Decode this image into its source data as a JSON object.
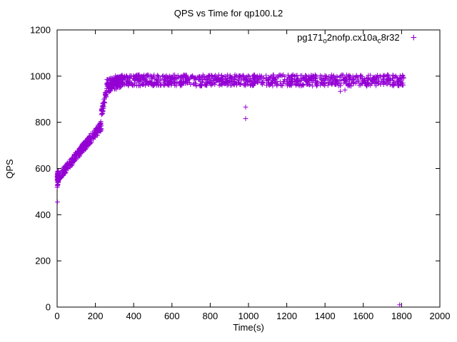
{
  "chart_data": {
    "type": "scatter",
    "title": "QPS vs Time for qp100.L2",
    "xlabel": "Time(s)",
    "ylabel": "QPS",
    "xlim": [
      0,
      2000
    ],
    "ylim": [
      0,
      1200
    ],
    "xticks": [
      0,
      200,
      400,
      600,
      800,
      1000,
      1200,
      1400,
      1600,
      1800,
      2000
    ],
    "yticks": [
      0,
      200,
      400,
      600,
      800,
      1000,
      1200
    ],
    "grid": false,
    "legend_position": "top-right-inside",
    "marker": "plus",
    "marker_color": "#9400D3",
    "series_name": "pg171_o2nofp.cx10a_c8r32",
    "legend_rich": [
      {
        "text": "pg171",
        "sub": false
      },
      {
        "text": "o",
        "sub": true
      },
      {
        "text": "2nofp.cx10a",
        "sub": false
      },
      {
        "text": "c",
        "sub": true
      },
      {
        "text": "8r32",
        "sub": false
      }
    ],
    "seed": 42,
    "clusters": [
      {
        "n": 55,
        "t": [
          0,
          7
        ],
        "qlo": [
          515,
          540
        ],
        "qhi": [
          585,
          595
        ]
      },
      {
        "n": 320,
        "t": [
          2,
          232
        ],
        "qlo": [
          540,
          765
        ],
        "qhi": [
          572,
          808
        ]
      },
      {
        "n": 45,
        "t": [
          232,
          262
        ],
        "qlo": [
          815,
          930
        ],
        "qhi": [
          855,
          978
        ]
      },
      {
        "n": 120,
        "t": [
          255,
          345
        ],
        "qlo": [
          928,
          952
        ],
        "qhi": [
          988,
          1000
        ]
      },
      {
        "n": 1000,
        "t": [
          300,
          1812
        ],
        "qlo": [
          957,
          957
        ],
        "qhi": [
          1006,
          1006
        ]
      }
    ],
    "outliers": [
      [
        2,
        455
      ],
      [
        985,
        866
      ],
      [
        985,
        816
      ],
      [
        1480,
        934
      ],
      [
        1504,
        940
      ],
      [
        1790,
        10
      ]
    ]
  }
}
